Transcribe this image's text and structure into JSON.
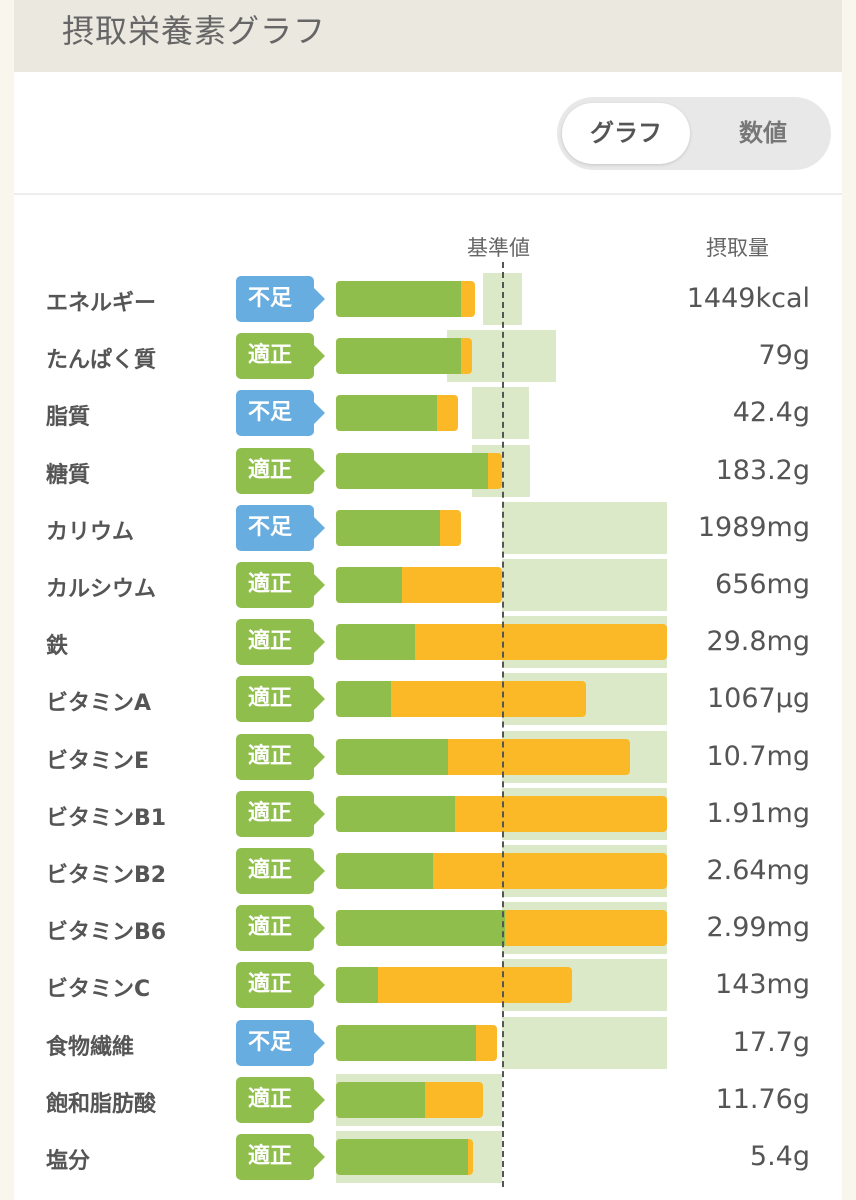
{
  "title": "摂取栄養素グラフ",
  "toggle": {
    "graph": "グラフ",
    "numeric": "数値",
    "selected": "グラフ"
  },
  "headers": {
    "baseline": "基準値",
    "intake": "摂取量"
  },
  "colors": {
    "insufficient": "#68ade0",
    "adequate": "#8fbe4c",
    "green_bar": "#8fbe4c",
    "orange_bar": "#fbb827",
    "range": "#dce9c8"
  },
  "chart_data": {
    "type": "bar",
    "note": "values on a scale where 100 = reference (基準値), 200 = full bar width",
    "scale_max": 200,
    "baseline": 100,
    "rows": [
      {
        "name": "エネルギー",
        "status": "不足",
        "kind": "insufficient",
        "green": 75.5,
        "total": 84,
        "range": [
          88.8,
          112.4
        ],
        "value": "1449kcal"
      },
      {
        "name": "たんぱく質",
        "status": "適正",
        "kind": "adequate",
        "green": 75.5,
        "total": 82,
        "range": [
          67,
          133
        ],
        "value": "79g"
      },
      {
        "name": "脂質",
        "status": "不足",
        "kind": "insufficient",
        "green": 61,
        "total": 73.7,
        "range": [
          82.2,
          116.6
        ],
        "value": "42.4g"
      },
      {
        "name": "糖質",
        "status": "適正",
        "kind": "adequate",
        "green": 91.8,
        "total": 100,
        "range": [
          82.2,
          117.2
        ],
        "value": "183.2g"
      },
      {
        "name": "カリウム",
        "status": "不足",
        "kind": "insufficient",
        "green": 63,
        "total": 75.5,
        "range": [
          100,
          200
        ],
        "value": "1989mg"
      },
      {
        "name": "カルシウム",
        "status": "適正",
        "kind": "adequate",
        "green": 40,
        "total": 100,
        "range": [
          100,
          200
        ],
        "value": "656mg"
      },
      {
        "name": "鉄",
        "status": "適正",
        "kind": "adequate",
        "green": 47.7,
        "total": 200,
        "range": [
          100,
          200
        ],
        "value": "29.8mg"
      },
      {
        "name": "ビタミンA",
        "status": "適正",
        "kind": "adequate",
        "green": 33,
        "total": 151,
        "range": [
          100,
          200
        ],
        "value": "1067μg"
      },
      {
        "name": "ビタミンE",
        "status": "適正",
        "kind": "adequate",
        "green": 67.7,
        "total": 177.6,
        "range": [
          100,
          200
        ],
        "value": "10.7mg"
      },
      {
        "name": "ビタミンB1",
        "status": "適正",
        "kind": "adequate",
        "green": 72,
        "total": 200,
        "range": [
          100,
          200
        ],
        "value": "1.91mg"
      },
      {
        "name": "ビタミンB2",
        "status": "適正",
        "kind": "adequate",
        "green": 58.6,
        "total": 200,
        "range": [
          100,
          200
        ],
        "value": "2.64mg"
      },
      {
        "name": "ビタミンB6",
        "status": "適正",
        "kind": "adequate",
        "green": 102,
        "total": 200,
        "range": [
          100,
          200
        ],
        "value": "2.99mg"
      },
      {
        "name": "ビタミンC",
        "status": "適正",
        "kind": "adequate",
        "green": 25.4,
        "total": 142.6,
        "range": [
          100,
          200
        ],
        "value": "143mg"
      },
      {
        "name": "食物繊維",
        "status": "不足",
        "kind": "insufficient",
        "green": 84.6,
        "total": 97.3,
        "range": [
          100,
          200
        ],
        "value": "17.7g"
      },
      {
        "name": "飽和脂肪酸",
        "status": "適正",
        "kind": "adequate",
        "green": 54,
        "total": 89,
        "range": [
          0,
          100
        ],
        "value": "11.76g"
      },
      {
        "name": "塩分",
        "status": "適正",
        "kind": "adequate",
        "green": 80,
        "total": 83,
        "range": [
          0,
          100
        ],
        "value": "5.4g"
      }
    ]
  }
}
